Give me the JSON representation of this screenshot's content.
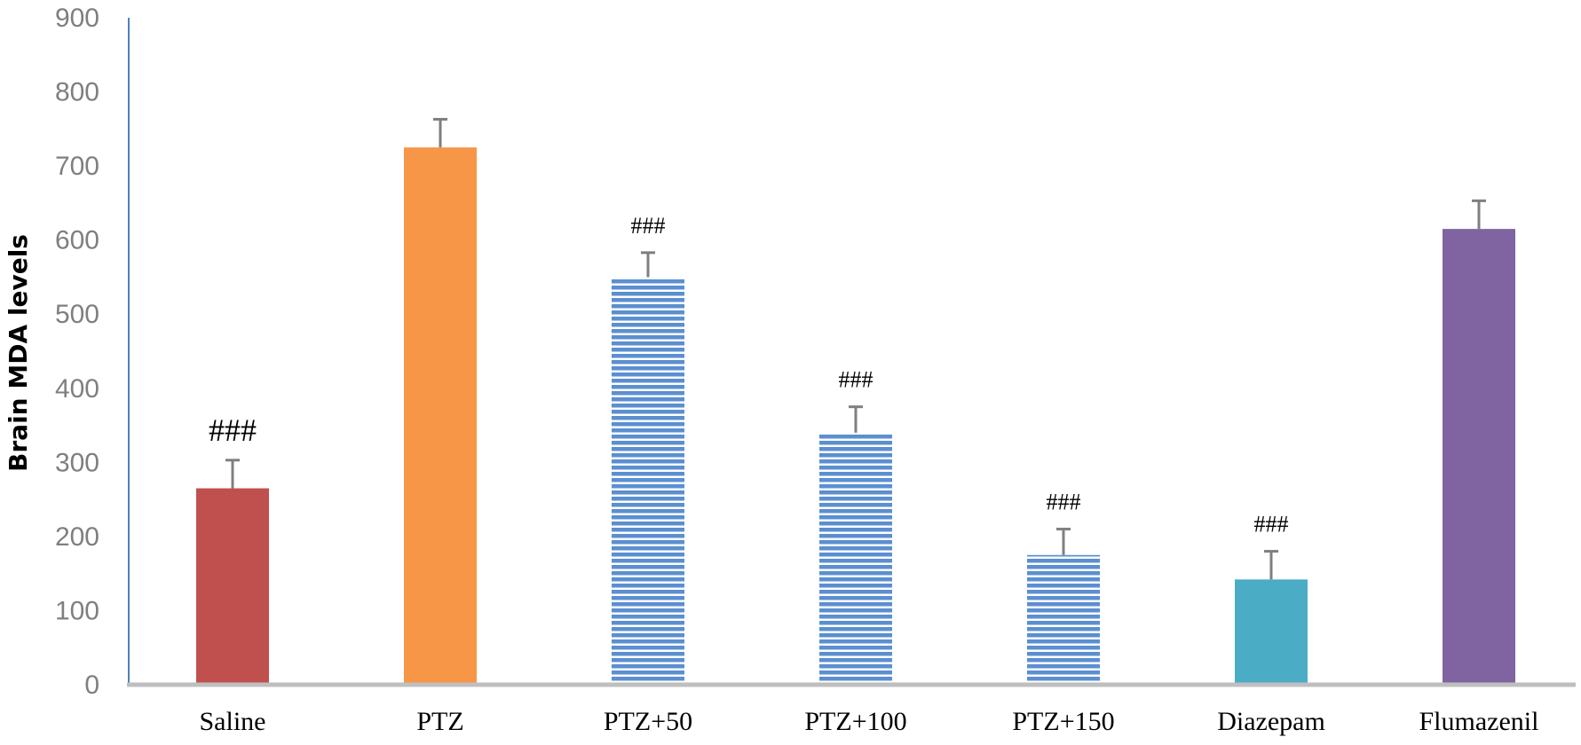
{
  "chart_data": {
    "type": "bar",
    "title": "",
    "xlabel": "",
    "ylabel": "Brain MDA levels",
    "ylim": [
      0,
      900
    ],
    "yticks": [
      0,
      100,
      200,
      300,
      400,
      500,
      600,
      700,
      800,
      900
    ],
    "grid": false,
    "legend": "none",
    "categories": [
      "Saline",
      "PTZ",
      "PTZ+50",
      "PTZ+100",
      "PTZ+150",
      "Diazepam",
      "Flumazenil"
    ],
    "values": [
      265,
      725,
      550,
      340,
      175,
      142,
      615
    ],
    "errors": [
      38,
      38,
      33,
      35,
      35,
      38,
      38
    ],
    "annotations": [
      "###",
      "",
      "###",
      "###",
      "###",
      "###",
      ""
    ],
    "bar_colors": [
      "#c0504d",
      "#f79646",
      "#4f81bd",
      "#4f81bd",
      "#4f81bd",
      "#4bacc6",
      "#8064a2"
    ],
    "bar_patterns": [
      "solid",
      "solid",
      "horizontal-stripes",
      "horizontal-stripes",
      "horizontal-stripes",
      "solid",
      "solid"
    ],
    "error_bar_color": "#7f7f7f",
    "axis_color_y": "#4f81bd",
    "axis_color_x": "#bfbfbf"
  }
}
